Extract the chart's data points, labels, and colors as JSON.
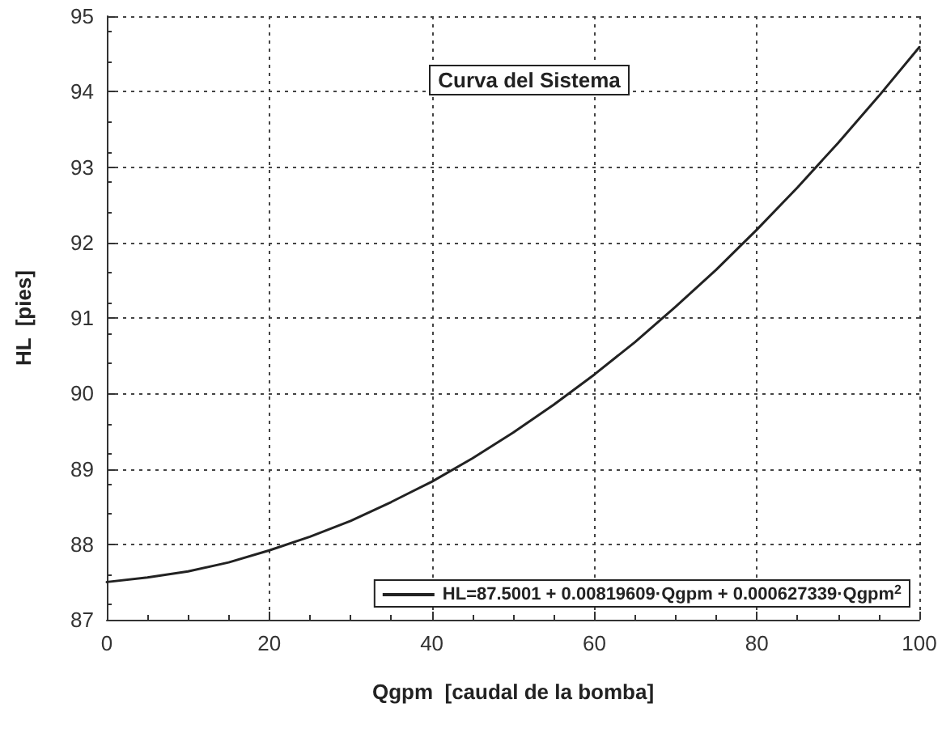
{
  "chart_data": {
    "type": "line",
    "title": "Curva del Sistema",
    "xlabel": "Qgpm  [caudal de la bomba]",
    "ylabel": "HL  [pies]",
    "x": [
      0,
      5,
      10,
      15,
      20,
      25,
      30,
      35,
      40,
      45,
      50,
      55,
      60,
      65,
      70,
      75,
      80,
      85,
      90,
      95,
      100
    ],
    "series": [
      {
        "name": "HL=87.5001 + 0.00819609·Qgpm + 0.000627339·Qgpm$^{2}$",
        "color": "#222222",
        "values": [
          87.5,
          87.56,
          87.64,
          87.76,
          87.92,
          88.1,
          88.31,
          88.56,
          88.83,
          89.14,
          89.48,
          89.85,
          90.25,
          90.68,
          91.15,
          91.64,
          92.17,
          92.73,
          93.32,
          93.94,
          94.59
        ]
      }
    ],
    "xlim": [
      0,
      100
    ],
    "xticks": [
      0,
      20,
      40,
      60,
      80,
      100
    ],
    "ylim": [
      87,
      95
    ],
    "yticks": [
      87,
      88,
      89,
      90,
      91,
      92,
      93,
      94,
      95
    ],
    "grid": true,
    "legend": "bottom right",
    "marker": "none",
    "line_style": "solid"
  }
}
